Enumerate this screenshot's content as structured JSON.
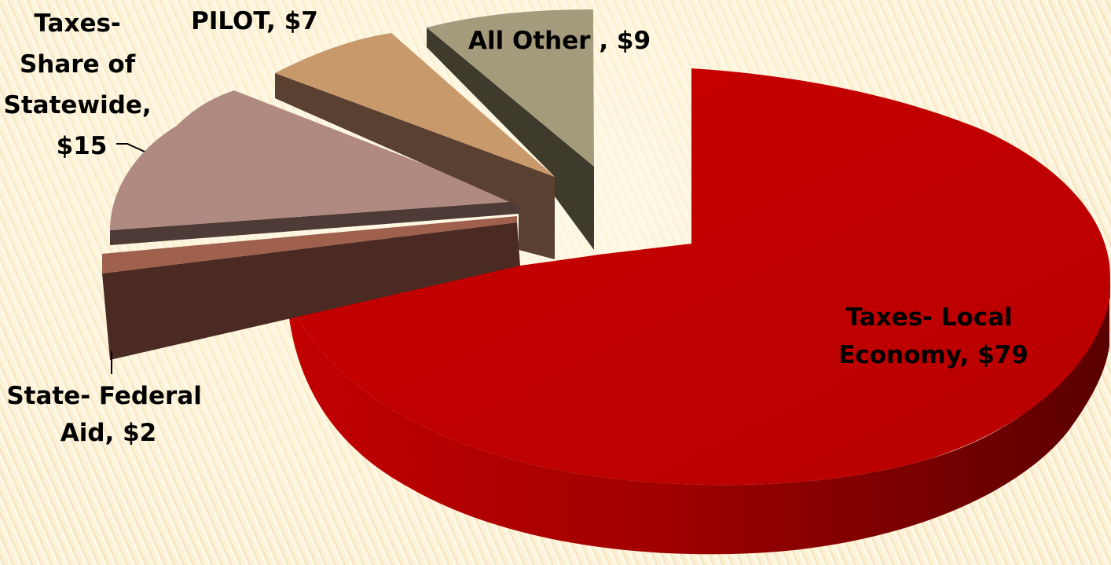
{
  "chart_data": {
    "type": "pie",
    "style": "3d-exploded",
    "slices": [
      {
        "label": "Taxes- Local Economy",
        "value": 79,
        "display": [
          "Taxes- Local",
          "Economy, $79"
        ],
        "color": "#c00000"
      },
      {
        "label": "State- Federal Aid",
        "value": 2,
        "display": [
          "State- Federal",
          "Aid, $2"
        ],
        "color": "#9e5b4b"
      },
      {
        "label": "Taxes- Share of Statewide",
        "value": 15,
        "display": [
          "Taxes-",
          "Share of",
          "Statewide,",
          "$15"
        ],
        "color": "#b08a80"
      },
      {
        "label": "PILOT",
        "value": 7,
        "display": [
          "PILOT, $7"
        ],
        "color": "#c8996a"
      },
      {
        "label": "All Other",
        "value": 9,
        "display": [
          "All Other , $9"
        ],
        "color": "#a49a7c"
      }
    ]
  }
}
